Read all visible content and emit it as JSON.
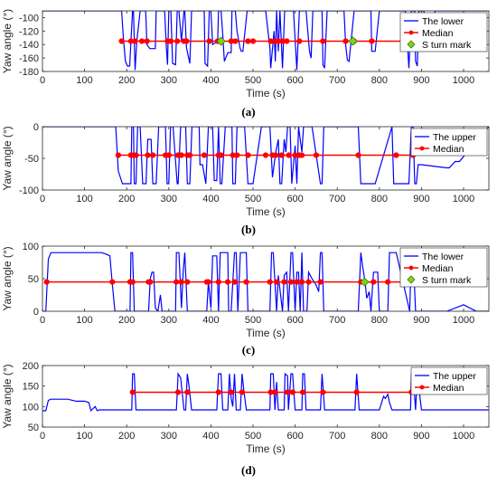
{
  "chart_data": [
    {
      "type": "line",
      "caption": "(a)",
      "xlabel": "Time (s)",
      "ylabel": "Yaw angle (°)",
      "xlim": [
        0,
        1060
      ],
      "ylim": [
        -180,
        -90
      ],
      "xticks": [
        0,
        100,
        200,
        300,
        400,
        500,
        600,
        700,
        800,
        900,
        1000
      ],
      "yticks": [
        -100,
        -120,
        -140,
        -160,
        -180
      ],
      "grid": false,
      "legend_position": "top-right",
      "colors": {
        "raw": "#0000ff",
        "median": "#ff0000",
        "mark": "#7fd11f"
      },
      "legend": [
        "The lower",
        "Median",
        "S turn mark"
      ],
      "median_value": -135,
      "series": [
        {
          "name": "The lower",
          "x": [
            0,
            188,
            192,
            197,
            202,
            207,
            210,
            214,
            216,
            220,
            224,
            232,
            236,
            245,
            248,
            255,
            268,
            270,
            280,
            290,
            294,
            297,
            300,
            305,
            309,
            316,
            320,
            324,
            330,
            336,
            338,
            342,
            350,
            354,
            360,
            384,
            386,
            392,
            396,
            400,
            404,
            416,
            418,
            421,
            424,
            428,
            432,
            440,
            448,
            450,
            452,
            458,
            462,
            469,
            472,
            476,
            486,
            488,
            492,
            500,
            508,
            516,
            520,
            530,
            540,
            542,
            550,
            553,
            556,
            560,
            564,
            570,
            575,
            578,
            588,
            596,
            604,
            610,
            614,
            618,
            626,
            634,
            638,
            642,
            664,
            666,
            670,
            676,
            716,
            720,
            724,
            728,
            740,
            744,
            748,
            756,
            760,
            780,
            782,
            790,
            800,
            840,
            862,
            870,
            876,
            884,
            886,
            890,
            894,
            906,
            910,
            920,
            932,
            1060
          ],
          "values": [
            -90,
            -90,
            -130,
            -165,
            -172,
            -172,
            -135,
            -90,
            -90,
            -178,
            -135,
            -90,
            -90,
            -90,
            -140,
            -146,
            -146,
            -90,
            -90,
            -90,
            -142,
            -170,
            -90,
            -90,
            -168,
            -170,
            -90,
            -90,
            -135,
            -90,
            -90,
            -145,
            -168,
            -90,
            -90,
            -90,
            -168,
            -172,
            -90,
            -90,
            -140,
            -135,
            -90,
            -90,
            -90,
            -125,
            -165,
            -152,
            -152,
            -90,
            -90,
            -90,
            -120,
            -145,
            -150,
            -150,
            -90,
            -90,
            -90,
            -90,
            -90,
            -90,
            -90,
            -90,
            -145,
            -175,
            -120,
            -165,
            -90,
            -150,
            -90,
            -175,
            -90,
            -90,
            -90,
            -90,
            -178,
            -90,
            -90,
            -90,
            -90,
            -150,
            -160,
            -90,
            -90,
            -170,
            -175,
            -90,
            -90,
            -140,
            -163,
            -165,
            -90,
            -90,
            -90,
            -90,
            -90,
            -90,
            -150,
            -150,
            -90,
            -90,
            -90,
            -175,
            -90,
            -90,
            -165,
            -172,
            -90,
            -90,
            -140,
            -140,
            -90,
            -90
          ]
        },
        {
          "name": "Median",
          "x": [
            188,
            210,
            220,
            236,
            248,
            297,
            305,
            320,
            336,
            342,
            396,
            416,
            424,
            448,
            458,
            488,
            500,
            542,
            553,
            560,
            570,
            580,
            610,
            666,
            720,
            740,
            782,
            862,
            876,
            890,
            906,
            920
          ],
          "values": -135
        },
        {
          "name": "S turn mark",
          "x": [
            424,
            737
          ],
          "values": -135
        }
      ]
    },
    {
      "type": "line",
      "caption": "(b)",
      "xlabel": "Time (s)",
      "ylabel": "Yaw angle (°)",
      "xlim": [
        0,
        1060
      ],
      "ylim": [
        -100,
        0
      ],
      "xticks": [
        0,
        100,
        200,
        300,
        400,
        500,
        600,
        700,
        800,
        900,
        1000
      ],
      "yticks": [
        0,
        -50,
        -100
      ],
      "grid": false,
      "legend_position": "top-right",
      "colors": {
        "raw": "#0000ff",
        "median": "#ff0000"
      },
      "legend": [
        "The upper",
        "Median"
      ],
      "median_value": -45,
      "series": [
        {
          "name": "The upper",
          "x": [
            0,
            174,
            180,
            190,
            198,
            210,
            212,
            216,
            218,
            222,
            226,
            232,
            238,
            246,
            250,
            258,
            262,
            270,
            276,
            292,
            296,
            300,
            304,
            310,
            320,
            322,
            328,
            340,
            344,
            350,
            355,
            360,
            372,
            374,
            380,
            388,
            394,
            404,
            408,
            414,
            418,
            422,
            426,
            434,
            450,
            452,
            458,
            462,
            480,
            488,
            492,
            500,
            520,
            540,
            546,
            554,
            560,
            564,
            568,
            574,
            578,
            582,
            588,
            592,
            600,
            604,
            608,
            612,
            616,
            620,
            640,
            660,
            664,
            668,
            750,
            756,
            760,
            790,
            830,
            834,
            840,
            870,
            876,
            880,
            884,
            888,
            892,
            896,
            900,
            960,
            966,
            980,
            990,
            1060
          ],
          "values": [
            0,
            0,
            -70,
            -90,
            -90,
            -90,
            0,
            0,
            -90,
            -90,
            0,
            0,
            -90,
            -90,
            -20,
            -20,
            -90,
            -90,
            0,
            0,
            -90,
            -90,
            0,
            0,
            -90,
            -90,
            0,
            0,
            -90,
            -90,
            0,
            0,
            0,
            -60,
            -60,
            -90,
            0,
            0,
            -85,
            -85,
            0,
            -90,
            -90,
            0,
            0,
            -90,
            -90,
            0,
            0,
            -90,
            -90,
            -90,
            0,
            0,
            -80,
            -40,
            -20,
            -90,
            -90,
            -20,
            -40,
            0,
            0,
            -90,
            -30,
            -90,
            0,
            -20,
            -40,
            0,
            0,
            -90,
            -90,
            0,
            0,
            -90,
            -90,
            -90,
            0,
            -90,
            -90,
            -90,
            0,
            0,
            -90,
            -90,
            -60,
            -60,
            -60,
            -65,
            -65,
            -55,
            -55,
            0
          ]
        },
        {
          "name": "Median",
          "x": [
            180,
            210,
            216,
            222,
            250,
            262,
            292,
            300,
            322,
            330,
            344,
            350,
            384,
            418,
            424,
            452,
            462,
            488,
            530,
            546,
            554,
            568,
            585,
            600,
            610,
            616,
            650,
            750,
            840,
            880
          ],
          "values": -45
        }
      ]
    },
    {
      "type": "line",
      "caption": "(c)",
      "xlabel": "Time (s)",
      "ylabel": "Yaw angle (°)",
      "xlim": [
        0,
        1060
      ],
      "ylim": [
        0,
        100
      ],
      "xticks": [
        0,
        100,
        200,
        300,
        400,
        500,
        600,
        700,
        800,
        900,
        1000
      ],
      "yticks": [
        0,
        50,
        100
      ],
      "grid": false,
      "legend_position": "top-right",
      "colors": {
        "raw": "#0000ff",
        "median": "#ff0000",
        "mark": "#7fd11f"
      },
      "legend": [
        "The lower",
        "Median",
        "S turn mark"
      ],
      "median_value": 45,
      "series": [
        {
          "name": "The lower",
          "x": [
            0,
            8,
            14,
            20,
            140,
            150,
            160,
            166,
            172,
            176,
            208,
            210,
            214,
            218,
            252,
            256,
            260,
            264,
            268,
            274,
            280,
            284,
            290,
            316,
            318,
            324,
            330,
            334,
            338,
            344,
            350,
            354,
            390,
            394,
            400,
            404,
            414,
            418,
            422,
            426,
            440,
            442,
            448,
            456,
            460,
            464,
            470,
            484,
            488,
            500,
            540,
            544,
            548,
            556,
            560,
            570,
            574,
            580,
            584,
            590,
            594,
            600,
            604,
            608,
            612,
            616,
            620,
            628,
            632,
            640,
            650,
            656,
            660,
            664,
            668,
            700,
            750,
            756,
            760,
            766,
            770,
            776,
            780,
            786,
            796,
            800,
            806,
            820,
            824,
            840,
            872,
            876,
            880,
            886,
            900,
            960,
            1000,
            1030,
            1060
          ],
          "values": [
            0,
            0,
            80,
            90,
            90,
            88,
            85,
            40,
            0,
            0,
            0,
            90,
            90,
            0,
            0,
            50,
            60,
            60,
            5,
            0,
            25,
            0,
            0,
            0,
            90,
            90,
            5,
            60,
            90,
            0,
            0,
            0,
            0,
            45,
            5,
            85,
            85,
            0,
            90,
            90,
            90,
            0,
            0,
            90,
            90,
            0,
            90,
            90,
            0,
            0,
            0,
            90,
            90,
            0,
            55,
            0,
            55,
            60,
            0,
            90,
            90,
            0,
            60,
            60,
            0,
            90,
            0,
            0,
            60,
            50,
            40,
            30,
            90,
            90,
            0,
            0,
            0,
            90,
            70,
            45,
            20,
            30,
            0,
            60,
            60,
            0,
            0,
            0,
            90,
            90,
            0,
            90,
            90,
            0,
            0,
            0,
            10,
            0,
            0
          ]
        },
        {
          "name": "Median",
          "x": [
            10,
            166,
            208,
            214,
            252,
            256,
            318,
            330,
            344,
            390,
            394,
            418,
            440,
            456,
            484,
            540,
            556,
            574,
            590,
            604,
            616,
            632,
            660,
            756,
            786,
            820,
            876
          ],
          "values": 45
        },
        {
          "name": "S turn mark",
          "x": [
            765
          ],
          "values": 45
        }
      ]
    },
    {
      "type": "line",
      "caption": "(d)",
      "xlabel": "Time (s)",
      "ylabel": "Yaw angle (°)",
      "xlim": [
        0,
        1060
      ],
      "ylim": [
        50,
        200
      ],
      "xticks": [
        0,
        100,
        200,
        300,
        400,
        500,
        600,
        700,
        800,
        900,
        1000
      ],
      "yticks": [
        50,
        100,
        150,
        200
      ],
      "grid": false,
      "legend_position": "top-right",
      "colors": {
        "raw": "#0000ff",
        "median": "#ff0000"
      },
      "legend": [
        "The upper",
        "Median"
      ],
      "median_value": 135,
      "series": [
        {
          "name": "The upper",
          "x": [
            0,
            8,
            14,
            20,
            60,
            80,
            100,
            110,
            115,
            125,
            130,
            135,
            212,
            214,
            218,
            222,
            230,
            318,
            322,
            328,
            336,
            340,
            344,
            348,
            354,
            360,
            414,
            418,
            424,
            428,
            440,
            444,
            448,
            452,
            456,
            460,
            470,
            474,
            478,
            484,
            540,
            542,
            548,
            552,
            556,
            560,
            574,
            576,
            582,
            584,
            590,
            594,
            600,
            616,
            618,
            622,
            626,
            660,
            664,
            670,
            700,
            742,
            746,
            752,
            756,
            800,
            810,
            814,
            820,
            824,
            830,
            840,
            874,
            876,
            882,
            886,
            890,
            900,
            1060
          ],
          "values": [
            90,
            90,
            115,
            118,
            118,
            113,
            113,
            110,
            90,
            100,
            90,
            92,
            92,
            180,
            180,
            92,
            92,
            92,
            180,
            170,
            92,
            92,
            180,
            150,
            92,
            92,
            92,
            180,
            180,
            92,
            92,
            180,
            120,
            100,
            180,
            92,
            92,
            180,
            140,
            92,
            92,
            180,
            180,
            92,
            160,
            92,
            92,
            180,
            175,
            92,
            180,
            180,
            92,
            92,
            180,
            180,
            92,
            92,
            180,
            92,
            92,
            92,
            180,
            92,
            92,
            92,
            125,
            120,
            130,
            110,
            92,
            92,
            92,
            180,
            150,
            92,
            180,
            92,
            92
          ]
        },
        {
          "name": "Median",
          "x": [
            214,
            322,
            344,
            418,
            448,
            474,
            542,
            552,
            582,
            594,
            618,
            666,
            746,
            876,
            890
          ],
          "values": 135
        }
      ]
    }
  ]
}
